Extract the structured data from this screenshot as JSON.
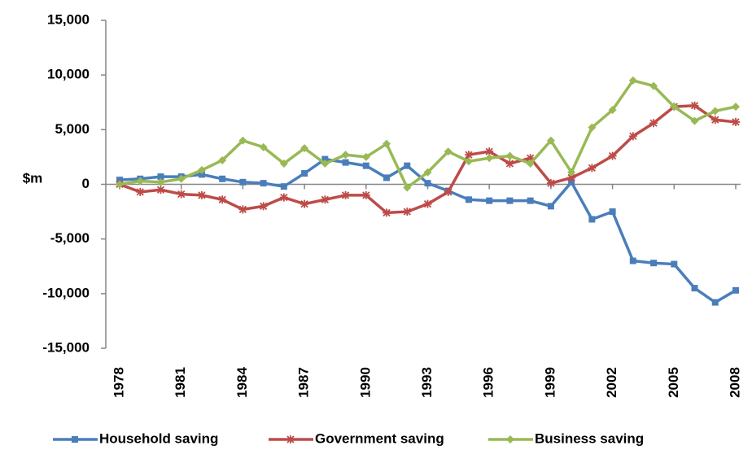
{
  "chart_data": {
    "type": "line",
    "y_label": "$m",
    "x": [
      1978,
      1979,
      1980,
      1981,
      1982,
      1983,
      1984,
      1985,
      1986,
      1987,
      1988,
      1989,
      1990,
      1991,
      1992,
      1993,
      1994,
      1995,
      1996,
      1997,
      1998,
      1999,
      2000,
      2001,
      2002,
      2003,
      2004,
      2005,
      2006,
      2007,
      2008
    ],
    "xlim": [
      1978,
      2008
    ],
    "xticks": [
      1978,
      1981,
      1984,
      1987,
      1990,
      1993,
      1996,
      1999,
      2002,
      2005,
      2008
    ],
    "ylim": [
      -15000,
      15000
    ],
    "yticks": [
      {
        "value": -15000,
        "label": "-15,000"
      },
      {
        "value": -10000,
        "label": "-10,000"
      },
      {
        "value": -5000,
        "label": "-5,000"
      },
      0,
      {
        "value": 5000,
        "label": "5,000"
      },
      {
        "value": 10000,
        "label": "10,000"
      },
      {
        "value": 15000,
        "label": "15,000"
      }
    ],
    "grid": false,
    "legend": "bottom",
    "series": [
      {
        "name": "Household saving",
        "color": "#4a7ebb",
        "marker": "square",
        "values": [
          400,
          500,
          700,
          700,
          900,
          500,
          200,
          100,
          -200,
          1000,
          2300,
          2000,
          1700,
          600,
          1700,
          100,
          -600,
          -1400,
          -1500,
          -1500,
          -1500,
          -2000,
          200,
          -3200,
          -2500,
          -7000,
          -7200,
          -7300,
          -9500,
          -10800,
          -9700
        ]
      },
      {
        "name": "Government saving",
        "color": "#be4b48",
        "marker": "asterisk",
        "values": [
          0,
          -700,
          -500,
          -900,
          -1000,
          -1400,
          -2300,
          -2000,
          -1200,
          -1800,
          -1400,
          -1000,
          -1000,
          -2600,
          -2500,
          -1800,
          -700,
          2700,
          3000,
          1900,
          2400,
          100,
          600,
          1500,
          2600,
          4400,
          5600,
          7100,
          7200,
          5900,
          5700
        ]
      },
      {
        "name": "Business saving",
        "color": "#98b954",
        "marker": "diamond",
        "values": [
          0,
          300,
          200,
          500,
          1300,
          2200,
          4000,
          3400,
          1900,
          3300,
          1900,
          2700,
          2500,
          3700,
          -300,
          1100,
          3000,
          2100,
          2400,
          2600,
          1900,
          4000,
          1100,
          5200,
          6800,
          9500,
          9000,
          7100,
          5800,
          6700,
          7100
        ]
      }
    ]
  }
}
